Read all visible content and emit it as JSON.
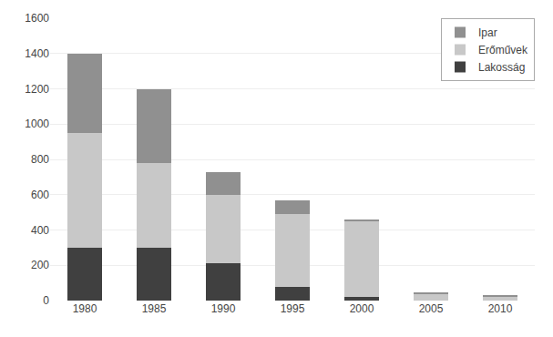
{
  "chart_data": {
    "type": "bar",
    "stacked": true,
    "categories": [
      "1980",
      "1985",
      "1990",
      "1995",
      "2000",
      "2005",
      "2010"
    ],
    "series": [
      {
        "name": "Lakosság",
        "color": "#404040",
        "values": [
          300,
          300,
          210,
          80,
          20,
          2,
          2
        ]
      },
      {
        "name": "Erőművek",
        "color": "#c8c8c8",
        "values": [
          650,
          480,
          390,
          410,
          430,
          38,
          22
        ]
      },
      {
        "name": "Ipar",
        "color": "#909090",
        "values": [
          450,
          420,
          130,
          80,
          10,
          5,
          5
        ]
      }
    ],
    "ylim": [
      0,
      1600
    ],
    "yticks": [
      0,
      200,
      400,
      600,
      800,
      1000,
      1200,
      1400,
      1600
    ],
    "grid": true,
    "legend": "upper right"
  }
}
